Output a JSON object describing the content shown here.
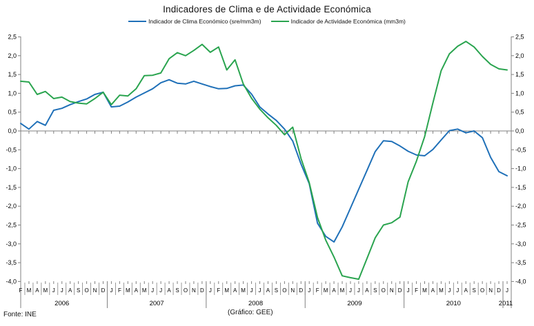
{
  "title": "Indicadores de Clima e de Actividade Económica",
  "legend": [
    {
      "label": "Indicador de Clima Económico (sre/mm3m)",
      "color": "#1F70B8"
    },
    {
      "label": "Indicador de Actividade Económica (mm3m)",
      "color": "#2AA44F"
    }
  ],
  "footer": {
    "source": "Fonte: INE",
    "credit": "(Gráfico: GEE)"
  },
  "axis_color": "#808080",
  "label_color": "#000000",
  "chart_data": {
    "type": "line",
    "title": "Indicadores de Clima e de Actividade Económica",
    "xlabel": "",
    "ylabel": "",
    "ylim": [
      -4.0,
      2.5
    ],
    "ytick_step": 0.5,
    "ytick_labels": [
      "2,5",
      "2,0",
      "1,5",
      "1,0",
      "0,5",
      "0,0",
      "-0,5",
      "-1,0",
      "-1,5",
      "-2,0",
      "-2,5",
      "-3,0",
      "-3,5",
      "-4,0"
    ],
    "grid": "zero-line-only",
    "legend_position": "top",
    "x_month_letters": [
      "F",
      "M",
      "A",
      "M",
      "J",
      "J",
      "A",
      "S",
      "O",
      "N",
      "D",
      "J",
      "F",
      "M",
      "A",
      "M",
      "J",
      "J",
      "A",
      "S",
      "O",
      "N",
      "D",
      "J",
      "F",
      "M",
      "A",
      "M",
      "J",
      "J",
      "A",
      "S",
      "O",
      "N",
      "D",
      "J",
      "F",
      "M",
      "A",
      "M",
      "J",
      "J",
      "A",
      "S",
      "O",
      "N",
      "D",
      "J",
      "F",
      "M",
      "A",
      "M",
      "J",
      "J",
      "A",
      "S",
      "O",
      "N",
      "D",
      "J"
    ],
    "year_groups": [
      {
        "label": "2006",
        "count": 11
      },
      {
        "label": "2007",
        "count": 12
      },
      {
        "label": "2008",
        "count": 12
      },
      {
        "label": "2009",
        "count": 12
      },
      {
        "label": "2010",
        "count": 12
      },
      {
        "label": "2011",
        "count": 1
      }
    ],
    "series": [
      {
        "name": "Indicador de Clima Económico (sre/mm3m)",
        "color": "#1F70B8",
        "values": [
          0.2,
          0.05,
          0.25,
          0.15,
          0.55,
          0.6,
          0.7,
          0.78,
          0.85,
          0.97,
          1.03,
          0.64,
          0.66,
          0.77,
          0.9,
          1.01,
          1.12,
          1.28,
          1.36,
          1.27,
          1.25,
          1.32,
          1.25,
          1.18,
          1.12,
          1.13,
          1.2,
          1.22,
          0.98,
          0.64,
          0.45,
          0.28,
          0.05,
          -0.27,
          -0.88,
          -1.4,
          -2.45,
          -2.8,
          -2.95,
          -2.55,
          -2.05,
          -1.55,
          -1.05,
          -0.55,
          -0.26,
          -0.28,
          -0.4,
          -0.54,
          -0.64,
          -0.66,
          -0.49,
          -0.24,
          0.01,
          0.05,
          -0.05,
          0.0,
          -0.18,
          -0.7,
          -1.08,
          -1.19
        ]
      },
      {
        "name": "Indicador de Actividade Económica (mm3m)",
        "color": "#2AA44F",
        "values": [
          1.32,
          1.3,
          0.97,
          1.05,
          0.86,
          0.9,
          0.78,
          0.74,
          0.72,
          0.86,
          1.03,
          0.7,
          0.95,
          0.93,
          1.12,
          1.47,
          1.48,
          1.54,
          1.92,
          2.08,
          2.0,
          2.14,
          2.3,
          2.09,
          2.23,
          1.62,
          1.89,
          1.25,
          0.87,
          0.58,
          0.35,
          0.15,
          -0.1,
          0.1,
          -0.73,
          -1.37,
          -2.3,
          -2.9,
          -3.35,
          -3.85,
          -3.9,
          -3.94,
          -3.39,
          -2.84,
          -2.5,
          -2.44,
          -2.29,
          -1.35,
          -0.8,
          -0.15,
          0.75,
          1.6,
          2.05,
          2.25,
          2.38,
          2.23,
          1.98,
          1.77,
          1.65,
          1.62
        ]
      }
    ]
  }
}
